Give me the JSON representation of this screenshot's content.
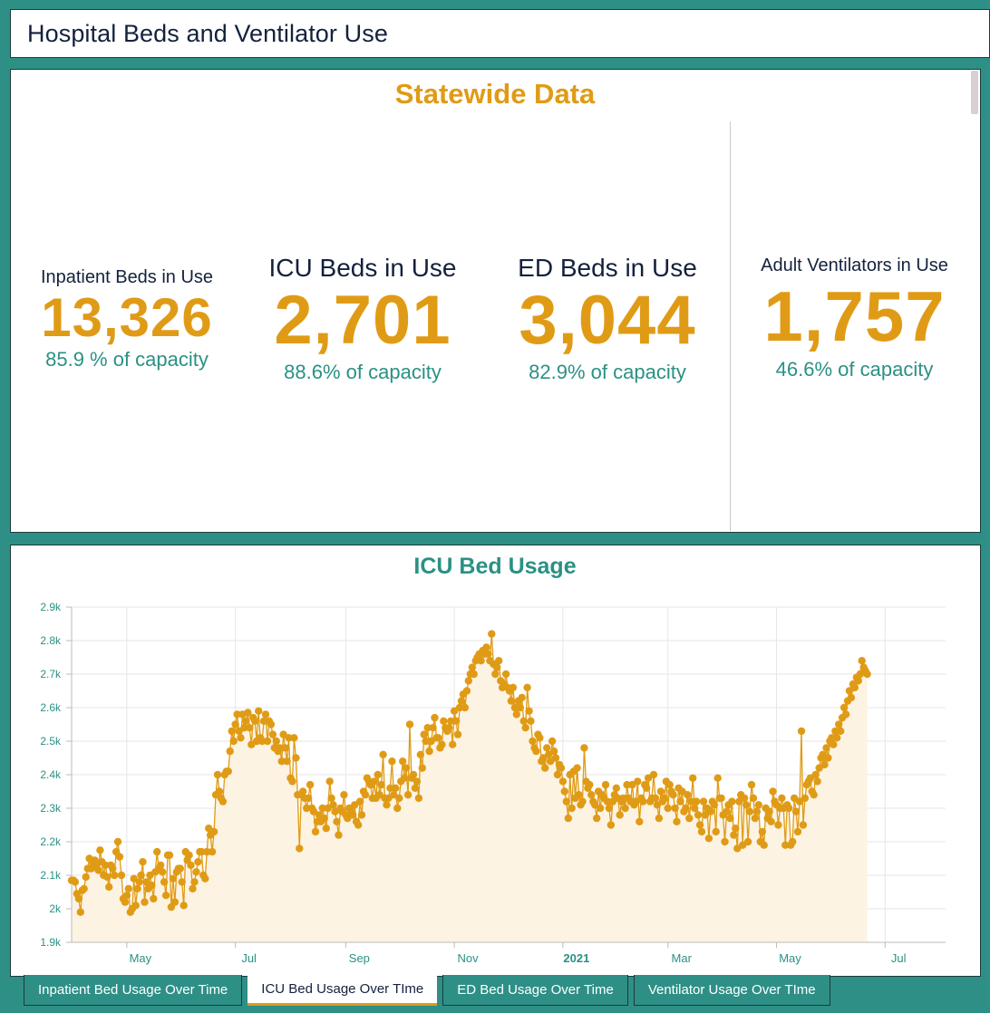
{
  "window": {
    "title": "Hospital Beds and Ventilator Use"
  },
  "stats": {
    "heading": "Statewide Data",
    "inpatient": {
      "label": "Inpatient Beds in Use",
      "value": "13,326",
      "pct": "85.9 % of capacity"
    },
    "icu": {
      "label": "ICU Beds in Use",
      "value": "2,701",
      "pct": "88.6% of capacity"
    },
    "ed": {
      "label": "ED Beds in Use",
      "value": "3,044",
      "pct": "82.9% of capacity"
    },
    "vent": {
      "label": "Adult Ventilators in Use",
      "value": "1,757",
      "pct": "46.6% of capacity"
    }
  },
  "colors": {
    "accent": "#e09b16",
    "teal": "#2a9184",
    "navy": "#14213d",
    "background": "#2e8f86",
    "area_fill": "#fcf3e3"
  },
  "tabs": [
    {
      "label": "Inpatient Bed Usage Over Time",
      "active": false
    },
    {
      "label": "ICU Bed Usage Over TIme",
      "active": true
    },
    {
      "label": "ED Bed Usage Over Time",
      "active": false
    },
    {
      "label": "Ventilator Usage Over TIme",
      "active": false
    }
  ],
  "chart_data": {
    "type": "area",
    "title": "ICU Bed Usage",
    "xlabel": "",
    "ylabel": "",
    "ylim": [
      1900,
      2900
    ],
    "y_ticks": [
      {
        "value": 1900,
        "label": "1.9k"
      },
      {
        "value": 2000,
        "label": "2k"
      },
      {
        "value": 2100,
        "label": "2.1k"
      },
      {
        "value": 2200,
        "label": "2.2k"
      },
      {
        "value": 2300,
        "label": "2.3k"
      },
      {
        "value": 2400,
        "label": "2.4k"
      },
      {
        "value": 2500,
        "label": "2.5k"
      },
      {
        "value": 2600,
        "label": "2.6k"
      },
      {
        "value": 2700,
        "label": "2.7k"
      },
      {
        "value": 2800,
        "label": "2.8k"
      },
      {
        "value": 2900,
        "label": "2.9k"
      }
    ],
    "x_range_days": [
      0,
      491
    ],
    "x_ticks": [
      {
        "day": 31,
        "label": "May",
        "bold": false
      },
      {
        "day": 92,
        "label": "Jul",
        "bold": false
      },
      {
        "day": 154,
        "label": "Sep",
        "bold": false
      },
      {
        "day": 215,
        "label": "Nov",
        "bold": false
      },
      {
        "day": 276,
        "label": "2021",
        "bold": true
      },
      {
        "day": 335,
        "label": "Mar",
        "bold": false
      },
      {
        "day": 396,
        "label": "May",
        "bold": false
      },
      {
        "day": 457,
        "label": "Jul",
        "bold": false
      }
    ],
    "grid": true,
    "legend": "none",
    "series": [
      {
        "name": "ICU Beds in Use",
        "x_start_day": 0,
        "values": [
          2085,
          2085,
          2080,
          2045,
          2030,
          1990,
          2055,
          2060,
          2095,
          2120,
          2150,
          2120,
          2135,
          2145,
          2130,
          2115,
          2175,
          2140,
          2100,
          2130,
          2095,
          2065,
          2130,
          2120,
          2100,
          2170,
          2200,
          2155,
          2100,
          2030,
          2020,
          2040,
          2060,
          1990,
          2000,
          2090,
          2010,
          2060,
          2080,
          2100,
          2140,
          2020,
          2080,
          2060,
          2100,
          2070,
          2030,
          2110,
          2170,
          2120,
          2130,
          2110,
          2080,
          2040,
          2160,
          2160,
          2005,
          2090,
          2020,
          2110,
          2120,
          2120,
          2080,
          2010,
          2170,
          2145,
          2160,
          2130,
          2060,
          2080,
          2110,
          2140,
          2170,
          2170,
          2100,
          2090,
          2170,
          2240,
          2220,
          2170,
          2230,
          2340,
          2400,
          2350,
          2330,
          2320,
          2400,
          2410,
          2410,
          2470,
          2530,
          2500,
          2550,
          2580,
          2530,
          2510,
          2580,
          2540,
          2560,
          2585,
          2540,
          2490,
          2570,
          2560,
          2500,
          2590,
          2510,
          2500,
          2560,
          2580,
          2500,
          2560,
          2550,
          2520,
          2480,
          2500,
          2470,
          2480,
          2440,
          2520,
          2480,
          2440,
          2510,
          2390,
          2380,
          2510,
          2450,
          2340,
          2180,
          2340,
          2350,
          2330,
          2300,
          2330,
          2370,
          2300,
          2290,
          2230,
          2260,
          2280,
          2260,
          2300,
          2270,
          2240,
          2300,
          2380,
          2330,
          2310,
          2290,
          2260,
          2220,
          2300,
          2290,
          2340,
          2280,
          2270,
          2300,
          2290,
          2280,
          2310,
          2260,
          2250,
          2320,
          2280,
          2350,
          2340,
          2390,
          2380,
          2370,
          2330,
          2380,
          2330,
          2400,
          2340,
          2370,
          2460,
          2330,
          2310,
          2330,
          2360,
          2440,
          2340,
          2360,
          2300,
          2330,
          2380,
          2440,
          2390,
          2420,
          2340,
          2550,
          2390,
          2400,
          2360,
          2380,
          2330,
          2460,
          2420,
          2520,
          2500,
          2540,
          2470,
          2500,
          2540,
          2570,
          2510,
          2510,
          2480,
          2490,
          2560,
          2540,
          2530,
          2540,
          2560,
          2490,
          2590,
          2560,
          2520,
          2600,
          2620,
          2640,
          2600,
          2650,
          2680,
          2700,
          2720,
          2700,
          2740,
          2750,
          2760,
          2740,
          2770,
          2760,
          2780,
          2760,
          2740,
          2820,
          2730,
          2700,
          2720,
          2740,
          2680,
          2660,
          2670,
          2700,
          2660,
          2650,
          2620,
          2660,
          2600,
          2580,
          2620,
          2600,
          2630,
          2560,
          2540,
          2660,
          2590,
          2560,
          2500,
          2480,
          2470,
          2520,
          2510,
          2440,
          2450,
          2420,
          2480,
          2460,
          2440,
          2500,
          2470,
          2450,
          2400,
          2430,
          2420,
          2380,
          2350,
          2320,
          2270,
          2400,
          2300,
          2410,
          2330,
          2420,
          2340,
          2310,
          2320,
          2480,
          2380,
          2360,
          2370,
          2340,
          2320,
          2310,
          2270,
          2350,
          2300,
          2340,
          2330,
          2370,
          2320,
          2300,
          2250,
          2320,
          2340,
          2360,
          2330,
          2280,
          2320,
          2330,
          2300,
          2370,
          2330,
          2320,
          2370,
          2310,
          2320,
          2380,
          2260,
          2330,
          2320,
          2370,
          2360,
          2390,
          2320,
          2330,
          2400,
          2330,
          2310,
          2270,
          2350,
          2320,
          2330,
          2380,
          2300,
          2370,
          2350,
          2340,
          2300,
          2260,
          2360,
          2320,
          2350,
          2290,
          2300,
          2340,
          2270,
          2320,
          2390,
          2300,
          2320,
          2280,
          2250,
          2230,
          2320,
          2280,
          2300,
          2210,
          2290,
          2320,
          2310,
          2230,
          2390,
          2330,
          2330,
          2280,
          2200,
          2290,
          2310,
          2270,
          2320,
          2220,
          2240,
          2180,
          2320,
          2340,
          2190,
          2330,
          2310,
          2200,
          2290,
          2370,
          2330,
          2270,
          2290,
          2310,
          2200,
          2230,
          2190,
          2300,
          2270,
          2290,
          2260,
          2350,
          2320,
          2310,
          2250,
          2300,
          2330,
          2300,
          2190,
          2310,
          2300,
          2190,
          2200,
          2330,
          2290,
          2230,
          2320,
          2530,
          2250,
          2330,
          2370,
          2380,
          2390,
          2350,
          2340,
          2400,
          2380,
          2420,
          2450,
          2460,
          2430,
          2480,
          2450,
          2500,
          2510,
          2490,
          2530,
          2510,
          2550,
          2530,
          2570,
          2600,
          2580,
          2620,
          2650,
          2630,
          2670,
          2660,
          2690,
          2680,
          2700,
          2740,
          2720,
          2710,
          2700
        ]
      }
    ]
  }
}
